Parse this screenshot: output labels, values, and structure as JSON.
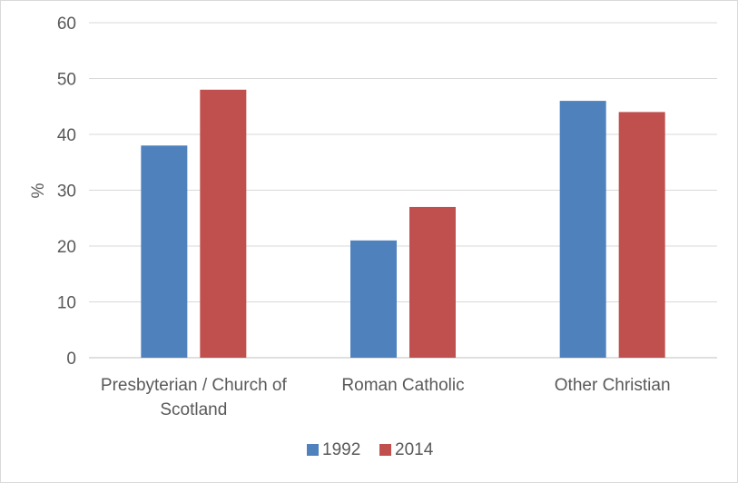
{
  "chart_data": {
    "type": "bar",
    "categories": [
      [
        "Presbyterian / Church of",
        "Scotland"
      ],
      [
        "Roman Catholic"
      ],
      [
        "Other Christian"
      ]
    ],
    "series": [
      {
        "name": "1992",
        "values": [
          38,
          21,
          46
        ],
        "color": "#4f81bd"
      },
      {
        "name": "2014",
        "values": [
          48,
          27,
          44
        ],
        "color": "#c0504d"
      }
    ],
    "ylabel": "%",
    "xlabel": "",
    "ylim": [
      0,
      60
    ],
    "yticks": [
      0,
      10,
      20,
      30,
      40,
      50,
      60
    ],
    "grid": true,
    "legend_position": "bottom"
  }
}
